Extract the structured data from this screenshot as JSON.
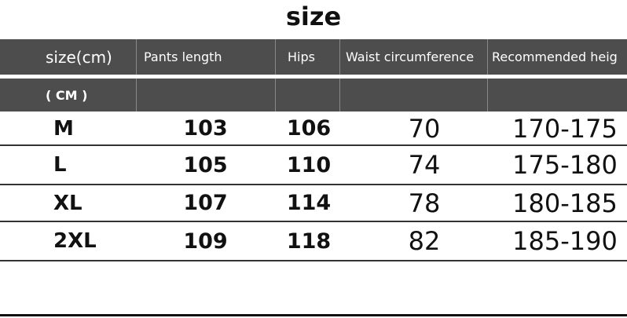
{
  "title": "size",
  "table": {
    "header": [
      "size(cm)",
      "Pants length",
      "Hips",
      "Waist circumference",
      "Recommended heig"
    ],
    "subheader": [
      "( CM )"
    ],
    "rows": [
      [
        "M",
        "103",
        "106",
        "70",
        "170-175"
      ],
      [
        "L",
        "105",
        "110",
        "74",
        "175-180"
      ],
      [
        "XL",
        "107",
        "114",
        "78",
        "180-185"
      ],
      [
        "2XL",
        "109",
        "118",
        "82",
        "185-190"
      ]
    ]
  }
}
